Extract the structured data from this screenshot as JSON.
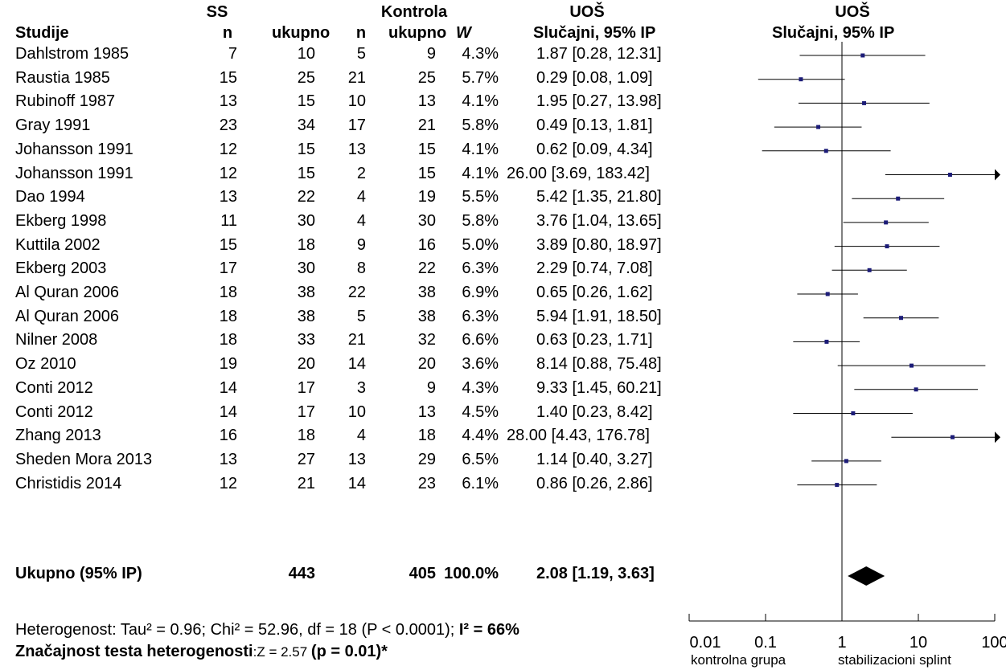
{
  "header": {
    "group1": "SS",
    "group2": "Kontrola",
    "effect_top": "UOŠ",
    "effect_sub": "Slučajni, 95% IP",
    "plot_top": "UOŠ",
    "plot_sub": "Slučajni, 95% IP",
    "col_study": "Studije",
    "col_n1": "n",
    "col_tot1": "ukupno",
    "col_n2": "n",
    "col_tot2": "ukupno",
    "col_w": "W"
  },
  "studies": [
    {
      "name": "Dahlstrom 1985",
      "n1": "7",
      "t1": "10",
      "n2": "5",
      "t2": "9",
      "w": "4.3%",
      "ci": "1.87 [0.28, 12.31]"
    },
    {
      "name": "Raustia 1985",
      "n1": "15",
      "t1": "25",
      "n2": "21",
      "t2": "25",
      "w": "5.7%",
      "ci": "0.29 [0.08, 1.09]"
    },
    {
      "name": "Rubinoff 1987",
      "n1": "13",
      "t1": "15",
      "n2": "10",
      "t2": "13",
      "w": "4.1%",
      "ci": "1.95 [0.27, 13.98]"
    },
    {
      "name": "Gray 1991",
      "n1": "23",
      "t1": "34",
      "n2": "17",
      "t2": "21",
      "w": "5.8%",
      "ci": "0.49 [0.13, 1.81]"
    },
    {
      "name": "Johansson 1991",
      "n1": "12",
      "t1": "15",
      "n2": "13",
      "t2": "15",
      "w": "4.1%",
      "ci": "0.62 [0.09, 4.34]"
    },
    {
      "name": "Johansson 1991",
      "n1": "12",
      "t1": "15",
      "n2": "2",
      "t2": "15",
      "w": "4.1%",
      "ci": "26.00 [3.69, 183.42]"
    },
    {
      "name": "Dao 1994",
      "n1": "13",
      "t1": "22",
      "n2": "4",
      "t2": "19",
      "w": "5.5%",
      "ci": "5.42 [1.35, 21.80]"
    },
    {
      "name": "Ekberg 1998",
      "n1": "11",
      "t1": "30",
      "n2": "4",
      "t2": "30",
      "w": "5.8%",
      "ci": "3.76 [1.04, 13.65]"
    },
    {
      "name": "Kuttila 2002",
      "n1": "15",
      "t1": "18",
      "n2": "9",
      "t2": "16",
      "w": "5.0%",
      "ci": "3.89 [0.80, 18.97]"
    },
    {
      "name": "Ekberg 2003",
      "n1": "17",
      "t1": "30",
      "n2": "8",
      "t2": "22",
      "w": "6.3%",
      "ci": "2.29 [0.74, 7.08]"
    },
    {
      "name": "Al Quran 2006",
      "n1": "18",
      "t1": "38",
      "n2": "22",
      "t2": "38",
      "w": "6.9%",
      "ci": "0.65 [0.26, 1.62]"
    },
    {
      "name": "Al Quran 2006",
      "n1": "18",
      "t1": "38",
      "n2": "5",
      "t2": "38",
      "w": "6.3%",
      "ci": "5.94 [1.91, 18.50]"
    },
    {
      "name": "Nilner 2008",
      "n1": "18",
      "t1": "33",
      "n2": "21",
      "t2": "32",
      "w": "6.6%",
      "ci": "0.63 [0.23, 1.71]"
    },
    {
      "name": "Oz 2010",
      "n1": "19",
      "t1": "20",
      "n2": "14",
      "t2": "20",
      "w": "3.6%",
      "ci": "8.14 [0.88, 75.48]"
    },
    {
      "name": "Conti 2012",
      "n1": "14",
      "t1": "17",
      "n2": "3",
      "t2": "9",
      "w": "4.3%",
      "ci": "9.33 [1.45, 60.21]"
    },
    {
      "name": "Conti 2012",
      "n1": "14",
      "t1": "17",
      "n2": "10",
      "t2": "13",
      "w": "4.5%",
      "ci": "1.40 [0.23, 8.42]"
    },
    {
      "name": "Zhang 2013",
      "n1": "16",
      "t1": "18",
      "n2": "4",
      "t2": "18",
      "w": "4.4%",
      "ci": "28.00 [4.43, 176.78]"
    },
    {
      "name": "Sheden Mora 2013",
      "n1": "13",
      "t1": "27",
      "n2": "13",
      "t2": "29",
      "w": "6.5%",
      "ci": "1.14 [0.40, 3.27]"
    },
    {
      "name": "Christidis 2014",
      "n1": "12",
      "t1": "21",
      "n2": "14",
      "t2": "23",
      "w": "6.1%",
      "ci": "0.86 [0.26, 2.86]"
    }
  ],
  "total": {
    "label": "Ukupno (95% IP)",
    "t1": "443",
    "t2": "405",
    "w": "100.0%",
    "ci": "2.08 [1.19, 3.63]"
  },
  "footer": {
    "het_text": "Heterogenost: Tau² = 0.96; Chi² = 52.96, df = 18 (P < 0.0001); ",
    "het_bold": "I² = 66%",
    "sig_bold": "Značajnost testa heterogenosti",
    "sig_text": ":Z = 2.57 ",
    "sig_p": "(p = 0.01)*"
  },
  "axis": {
    "labels_left": "kontrolna grupa",
    "labels_right": "stabilizacioni splint"
  },
  "colors": {
    "marker": "#1c1c78",
    "line": "#000000"
  },
  "chart_data": {
    "type": "forest",
    "scale": "log",
    "xlim": [
      0.01,
      100
    ],
    "xticks": [
      0.01,
      0.1,
      1,
      10,
      100
    ],
    "xticklabels": [
      "0.01",
      "0.1",
      "1",
      "10",
      "100"
    ],
    "reference_line": 1,
    "estimates": [
      {
        "or": 1.87,
        "lo": 0.28,
        "hi": 12.31
      },
      {
        "or": 0.29,
        "lo": 0.08,
        "hi": 1.09
      },
      {
        "or": 1.95,
        "lo": 0.27,
        "hi": 13.98
      },
      {
        "or": 0.49,
        "lo": 0.13,
        "hi": 1.81
      },
      {
        "or": 0.62,
        "lo": 0.09,
        "hi": 4.34
      },
      {
        "or": 26.0,
        "lo": 3.69,
        "hi": 183.42
      },
      {
        "or": 5.42,
        "lo": 1.35,
        "hi": 21.8
      },
      {
        "or": 3.76,
        "lo": 1.04,
        "hi": 13.65
      },
      {
        "or": 3.89,
        "lo": 0.8,
        "hi": 18.97
      },
      {
        "or": 2.29,
        "lo": 0.74,
        "hi": 7.08
      },
      {
        "or": 0.65,
        "lo": 0.26,
        "hi": 1.62
      },
      {
        "or": 5.94,
        "lo": 1.91,
        "hi": 18.5
      },
      {
        "or": 0.63,
        "lo": 0.23,
        "hi": 1.71
      },
      {
        "or": 8.14,
        "lo": 0.88,
        "hi": 75.48
      },
      {
        "or": 9.33,
        "lo": 1.45,
        "hi": 60.21
      },
      {
        "or": 1.4,
        "lo": 0.23,
        "hi": 8.42
      },
      {
        "or": 28.0,
        "lo": 4.43,
        "hi": 176.78
      },
      {
        "or": 1.14,
        "lo": 0.4,
        "hi": 3.27
      },
      {
        "or": 0.86,
        "lo": 0.26,
        "hi": 2.86
      }
    ],
    "pooled": {
      "or": 2.08,
      "lo": 1.19,
      "hi": 3.63
    }
  }
}
